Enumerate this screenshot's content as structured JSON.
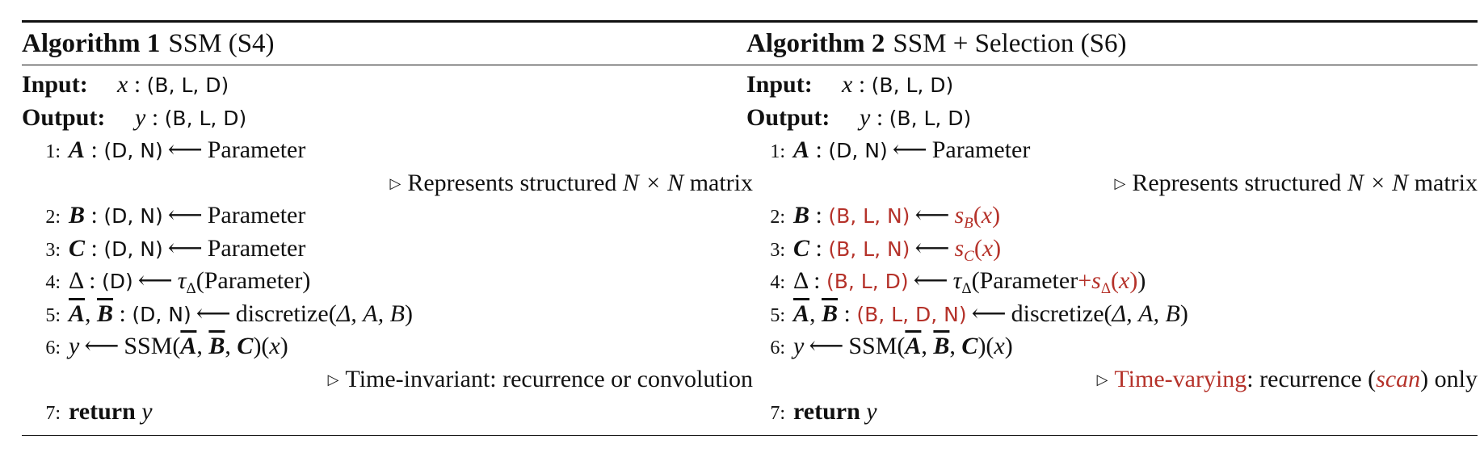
{
  "algorithm_1": {
    "label": "Algorithm 1",
    "title": "SSM (S4)",
    "input_label": "Input:",
    "input_var": "x",
    "input_shape": "(B, L, D)",
    "output_label": "Output:",
    "output_var": "y",
    "output_shape": "(B, L, D)",
    "lines": {
      "l1": {
        "num": "1:",
        "var": "A",
        "shape": "(D, N)",
        "rhs": "Parameter"
      },
      "c1": {
        "text_before": "Represents structured ",
        "math": "N × N",
        "text_after": " matrix"
      },
      "l2": {
        "num": "2:",
        "var": "B",
        "shape": "(D, N)",
        "rhs": "Parameter"
      },
      "l3": {
        "num": "3:",
        "var": "C",
        "shape": "(D, N)",
        "rhs": "Parameter"
      },
      "l4": {
        "num": "4:",
        "var": "Δ",
        "shape": "(D)",
        "fn": "τ",
        "fn_sub": "Δ",
        "arg": "Parameter"
      },
      "l5": {
        "num": "5:",
        "var_a": "A",
        "var_b": "B",
        "shape": "(D, N)",
        "fn": "discretize",
        "args": "Δ, A, B"
      },
      "l6": {
        "num": "6:",
        "var": "y",
        "fn": "SSM",
        "arg_x": "x"
      },
      "c2": {
        "text": "Time-invariant: recurrence or convolution"
      },
      "l7": {
        "num": "7:",
        "kw": "return",
        "var": "y"
      }
    }
  },
  "algorithm_2": {
    "label": "Algorithm 2",
    "title": "SSM + Selection (S6)",
    "input_label": "Input:",
    "input_var": "x",
    "input_shape": "(B, L, D)",
    "output_label": "Output:",
    "output_var": "y",
    "output_shape": "(B, L, D)",
    "lines": {
      "l1": {
        "num": "1:",
        "var": "A",
        "shape": "(D, N)",
        "rhs": "Parameter"
      },
      "c1": {
        "text_before": "Represents structured ",
        "math": "N × N",
        "text_after": " matrix"
      },
      "l2": {
        "num": "2:",
        "var": "B",
        "shape": "(B, L, N)",
        "fn": "s",
        "fn_sub": "B",
        "arg": "x"
      },
      "l3": {
        "num": "3:",
        "var": "C",
        "shape": "(B, L, N)",
        "fn": "s",
        "fn_sub": "C",
        "arg": "x"
      },
      "l4": {
        "num": "4:",
        "var": "Δ",
        "shape": "(B, L, D)",
        "fn": "τ",
        "fn_sub": "Δ",
        "arg": "Parameter",
        "plus_fn": "s",
        "plus_sub": "Δ",
        "plus_arg": "x"
      },
      "l5": {
        "num": "5:",
        "var_a": "A",
        "var_b": "B",
        "shape": "(B, L, D, N)",
        "fn": "discretize",
        "args": "Δ, A, B"
      },
      "l6": {
        "num": "6:",
        "var": "y",
        "fn": "SSM",
        "arg_x": "x"
      },
      "c2": {
        "red_text": "Time-varying",
        "text_mid": ": recurrence (",
        "italic_red": "scan",
        "text_after": ") only"
      },
      "l7": {
        "num": "7:",
        "kw": "return",
        "var": "y"
      }
    }
  },
  "colors": {
    "highlight": "#b5322a",
    "text": "#111111"
  },
  "icons": {
    "comment_marker": "triangle-right-icon"
  }
}
